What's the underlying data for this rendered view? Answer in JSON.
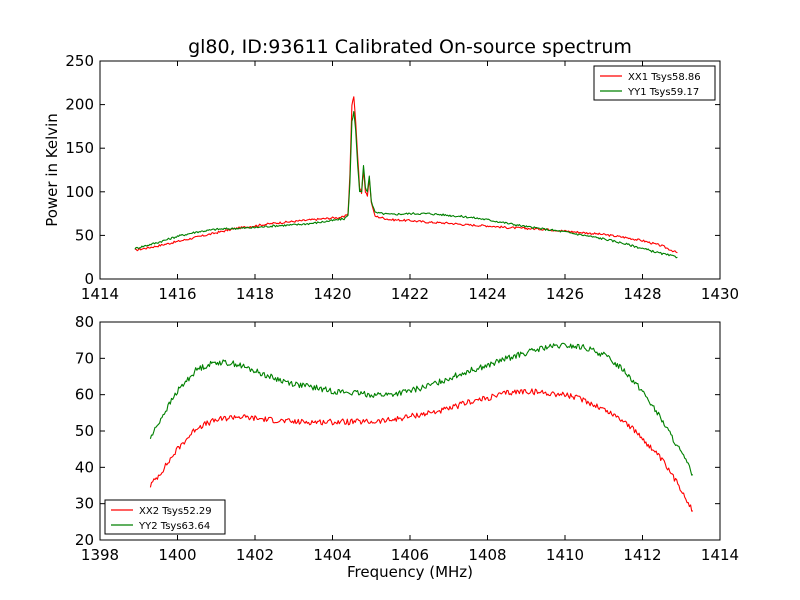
{
  "chart_data": [
    {
      "type": "line",
      "title": "gl80, ID:93611 Calibrated On-source spectrum",
      "xlabel": "",
      "ylabel": "Power in Kelvin",
      "xlim": [
        1414,
        1430
      ],
      "ylim": [
        0,
        250
      ],
      "xticks": [
        1414,
        1416,
        1418,
        1420,
        1422,
        1424,
        1426,
        1428,
        1430
      ],
      "yticks": [
        0,
        50,
        100,
        150,
        200,
        250
      ],
      "legend_position": "top-right",
      "grid": false,
      "series": [
        {
          "name": "XX1 Tsys58.86",
          "color": "#ff0000",
          "points": [
            [
              1414.9,
              33
            ],
            [
              1415.5,
              38
            ],
            [
              1416,
              43
            ],
            [
              1416.5,
              48
            ],
            [
              1417,
              53
            ],
            [
              1417.5,
              58
            ],
            [
              1418,
              61
            ],
            [
              1418.5,
              64
            ],
            [
              1419,
              66
            ],
            [
              1419.5,
              68
            ],
            [
              1420,
              70
            ],
            [
              1420.3,
              71
            ],
            [
              1420.4,
              75
            ],
            [
              1420.45,
              120
            ],
            [
              1420.5,
              200
            ],
            [
              1420.55,
              209
            ],
            [
              1420.6,
              180
            ],
            [
              1420.65,
              140
            ],
            [
              1420.7,
              105
            ],
            [
              1420.75,
              98
            ],
            [
              1420.8,
              125
            ],
            [
              1420.85,
              100
            ],
            [
              1420.9,
              95
            ],
            [
              1420.95,
              115
            ],
            [
              1421,
              88
            ],
            [
              1421.1,
              72
            ],
            [
              1421.5,
              68
            ],
            [
              1422,
              67
            ],
            [
              1422.5,
              65
            ],
            [
              1423,
              64
            ],
            [
              1423.5,
              62
            ],
            [
              1424,
              61
            ],
            [
              1424.5,
              59
            ],
            [
              1425,
              58
            ],
            [
              1425.5,
              57
            ],
            [
              1426,
              55
            ],
            [
              1426.5,
              53
            ],
            [
              1427,
              51
            ],
            [
              1427.5,
              48
            ],
            [
              1428,
              44
            ],
            [
              1428.5,
              38
            ],
            [
              1428.9,
              30
            ]
          ]
        },
        {
          "name": "YY1 Tsys59.17",
          "color": "#008000",
          "points": [
            [
              1414.9,
              35
            ],
            [
              1415.5,
              42
            ],
            [
              1416,
              49
            ],
            [
              1416.5,
              54
            ],
            [
              1417,
              57
            ],
            [
              1417.5,
              58
            ],
            [
              1418,
              59
            ],
            [
              1418.5,
              61
            ],
            [
              1419,
              62
            ],
            [
              1419.5,
              64
            ],
            [
              1420,
              67
            ],
            [
              1420.3,
              69
            ],
            [
              1420.4,
              73
            ],
            [
              1420.45,
              110
            ],
            [
              1420.5,
              180
            ],
            [
              1420.55,
              192
            ],
            [
              1420.6,
              170
            ],
            [
              1420.65,
              130
            ],
            [
              1420.7,
              100
            ],
            [
              1420.75,
              100
            ],
            [
              1420.8,
              130
            ],
            [
              1420.85,
              105
            ],
            [
              1420.9,
              100
            ],
            [
              1420.95,
              118
            ],
            [
              1421,
              90
            ],
            [
              1421.1,
              76
            ],
            [
              1421.5,
              74
            ],
            [
              1422,
              75
            ],
            [
              1422.5,
              75
            ],
            [
              1423,
              73
            ],
            [
              1423.5,
              71
            ],
            [
              1424,
              68
            ],
            [
              1424.5,
              64
            ],
            [
              1425,
              60
            ],
            [
              1425.5,
              57
            ],
            [
              1426,
              54
            ],
            [
              1426.5,
              50
            ],
            [
              1427,
              46
            ],
            [
              1427.5,
              41
            ],
            [
              1428,
              35
            ],
            [
              1428.5,
              29
            ],
            [
              1428.9,
              25
            ]
          ]
        }
      ]
    },
    {
      "type": "line",
      "title": "",
      "xlabel": "Frequency (MHz)",
      "ylabel": "",
      "xlim": [
        1398,
        1414
      ],
      "ylim": [
        20,
        80
      ],
      "xticks": [
        1398,
        1400,
        1402,
        1404,
        1406,
        1408,
        1410,
        1412,
        1414
      ],
      "yticks": [
        20,
        30,
        40,
        50,
        60,
        70,
        80
      ],
      "legend_position": "bottom-left",
      "grid": false,
      "series": [
        {
          "name": "XX2 Tsys52.29",
          "color": "#ff0000",
          "points": [
            [
              1399.3,
              35
            ],
            [
              1399.6,
              39
            ],
            [
              1400,
              45
            ],
            [
              1400.5,
              51
            ],
            [
              1401,
              53
            ],
            [
              1401.5,
              54
            ],
            [
              1402,
              53.5
            ],
            [
              1402.5,
              53
            ],
            [
              1403,
              52.5
            ],
            [
              1403.5,
              52.5
            ],
            [
              1404,
              52.5
            ],
            [
              1404.5,
              52.5
            ],
            [
              1405,
              52.5
            ],
            [
              1405.5,
              53
            ],
            [
              1406,
              54
            ],
            [
              1406.5,
              55
            ],
            [
              1407,
              56
            ],
            [
              1407.5,
              58
            ],
            [
              1408,
              59
            ],
            [
              1408.5,
              60.5
            ],
            [
              1409,
              61
            ],
            [
              1409.5,
              60.5
            ],
            [
              1410,
              60
            ],
            [
              1410.5,
              58.5
            ],
            [
              1411,
              56
            ],
            [
              1411.5,
              53
            ],
            [
              1412,
              48
            ],
            [
              1412.5,
              42
            ],
            [
              1413,
              34
            ],
            [
              1413.3,
              28
            ]
          ]
        },
        {
          "name": "YY2 Tsys63.64",
          "color": "#008000",
          "points": [
            [
              1399.3,
              48
            ],
            [
              1399.6,
              54
            ],
            [
              1400,
              61
            ],
            [
              1400.5,
              67
            ],
            [
              1401,
              69
            ],
            [
              1401.5,
              68.5
            ],
            [
              1402,
              66.5
            ],
            [
              1402.5,
              64.5
            ],
            [
              1403,
              63
            ],
            [
              1403.5,
              62
            ],
            [
              1404,
              61
            ],
            [
              1404.5,
              60.5
            ],
            [
              1405,
              60
            ],
            [
              1405.5,
              60
            ],
            [
              1406,
              61
            ],
            [
              1406.5,
              62.5
            ],
            [
              1407,
              64.5
            ],
            [
              1407.5,
              66.5
            ],
            [
              1408,
              68
            ],
            [
              1408.5,
              70
            ],
            [
              1409,
              71.5
            ],
            [
              1409.5,
              73
            ],
            [
              1410,
              73.5
            ],
            [
              1410.5,
              73
            ],
            [
              1411,
              71
            ],
            [
              1411.5,
              67
            ],
            [
              1412,
              61
            ],
            [
              1412.5,
              53
            ],
            [
              1413,
              44
            ],
            [
              1413.3,
              38
            ]
          ]
        }
      ]
    }
  ]
}
